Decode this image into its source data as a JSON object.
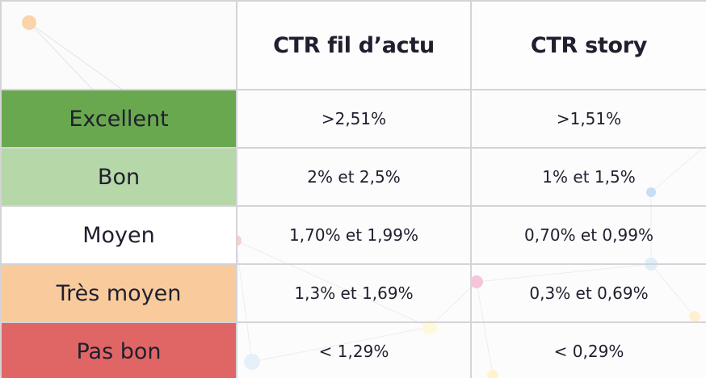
{
  "table": {
    "headers": [
      "",
      "CTR fil d’actu",
      "CTR story"
    ],
    "rows": [
      {
        "label": "Excellent",
        "feed": ">2,51%",
        "story": ">1,51%",
        "color": "#6aa84f"
      },
      {
        "label": "Bon",
        "feed": "2% et 2,5%",
        "story": "1% et 1,5%",
        "color": "#b6d7a8"
      },
      {
        "label": "Moyen",
        "feed": "1,70% et 1,99%",
        "story": "0,70% et 0,99%",
        "color": "#ffffff"
      },
      {
        "label": "Très moyen",
        "feed": "1,3% et 1,69%",
        "story": "0,3% et 0,69%",
        "color": "#f9cb9c"
      },
      {
        "label": "Pas bon",
        "feed": "< 1,29%",
        "story": "< 0,29%",
        "color": "#e06666"
      }
    ]
  }
}
